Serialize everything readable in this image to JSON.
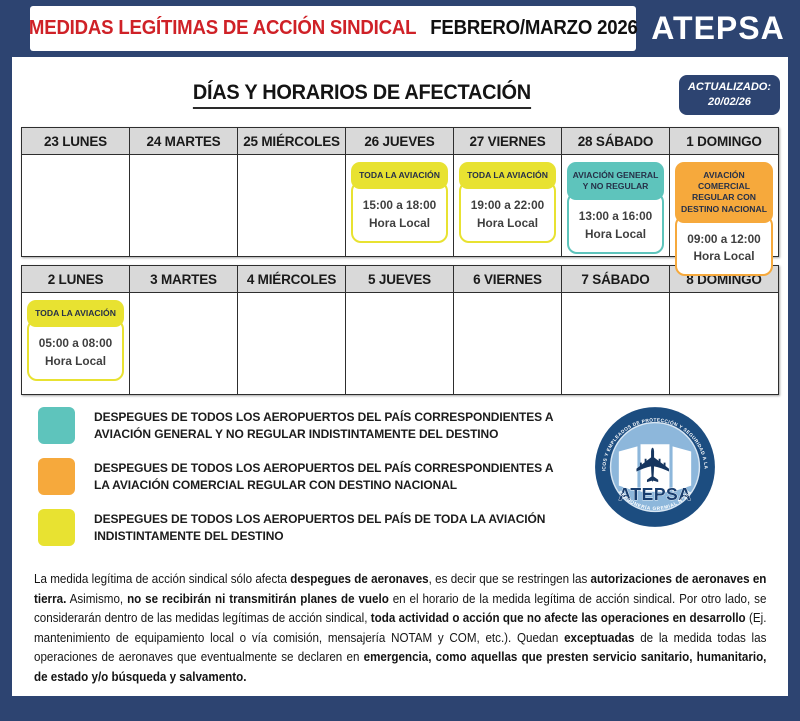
{
  "colors": {
    "navy": "#2d4471",
    "red": "#cf2127",
    "yellow": "#e8e231",
    "teal": "#5ec4bc",
    "orange": "#f6a93c",
    "header_gray": "#d9d9d9"
  },
  "header": {
    "title_red": "MEDIDAS LEGÍTIMAS DE ACCIÓN SINDICAL",
    "title_period": "FEBRERO/MARZO 2026",
    "brand": "ATEPSA"
  },
  "main": {
    "section_title": "DÍAS Y HORARIOS DE AFECTACIÓN",
    "updated_label": "ACTUALIZADO:",
    "updated_date": "20/02/26"
  },
  "calendar": {
    "weeks": [
      {
        "days": [
          {
            "label": "23 LUNES"
          },
          {
            "label": "24 MARTES"
          },
          {
            "label": "25 MIÉRCOLES"
          },
          {
            "label": "26 JUEVES",
            "event": {
              "type": "yellow",
              "badge": "TODA LA AVIACIÓN",
              "time": "15:00 a 18:00",
              "time_label": "Hora Local"
            }
          },
          {
            "label": "27 VIERNES",
            "event": {
              "type": "yellow",
              "badge": "TODA LA AVIACIÓN",
              "time": "19:00 a 22:00",
              "time_label": "Hora Local"
            }
          },
          {
            "label": "28 SÁBADO",
            "event": {
              "type": "teal",
              "badge": "AVIACIÓN GENERAL Y NO REGULAR",
              "time": "13:00 a 16:00",
              "time_label": "Hora Local"
            }
          },
          {
            "label": "1 DOMINGO",
            "event": {
              "type": "orange",
              "badge": "AVIACIÓN COMERCIAL REGULAR CON DESTINO NACIONAL",
              "time": "09:00 a 12:00",
              "time_label": "Hora Local"
            }
          }
        ]
      },
      {
        "days": [
          {
            "label": "2 LUNES",
            "event": {
              "type": "yellow",
              "badge": "TODA LA AVIACIÓN",
              "time": "05:00 a 08:00",
              "time_label": "Hora Local"
            }
          },
          {
            "label": "3 MARTES"
          },
          {
            "label": "4 MIÉRCOLES"
          },
          {
            "label": "5 JUEVES"
          },
          {
            "label": "6 VIERNES"
          },
          {
            "label": "7 SÁBADO"
          },
          {
            "label": "8 DOMINGO"
          }
        ]
      }
    ]
  },
  "legend": [
    {
      "color": "#5ec4bc",
      "lines": [
        "DESPEGUES DE TODOS LOS AEROPUERTOS DEL PAÍS CORRESPONDIENTES A",
        "AVIACIÓN GENERAL Y NO REGULAR INDISTINTAMENTE DEL DESTINO"
      ]
    },
    {
      "color": "#f6a93c",
      "lines": [
        "DESPEGUES DE TODOS LOS AEROPUERTOS DEL PAÍS CORRESPONDIENTES  A",
        "LA AVIACIÓN COMERCIAL REGULAR CON DESTINO NACIONAL"
      ]
    },
    {
      "color": "#e8e231",
      "lines": [
        "DESPEGUES DE TODOS LOS AEROPUERTOS DEL PAÍS DE TODA LA AVIACIÓN",
        "INDISTINTAMENTE DEL DESTINO"
      ]
    }
  ],
  "logo": {
    "brand": "ATEPSA",
    "ring_text_top": "ASOCIACIÓN TÉCNICOS Y EMPLEADOS DE PROTECCIÓN Y SEGURIDAD A LA AERONAVEGACIÓN",
    "ring_text_bottom": "PERSONERÍA GREMIAL N°356"
  },
  "footnote": {
    "segments": [
      {
        "text": "La medida legítima de acción sindical sólo afecta ",
        "bold": false
      },
      {
        "text": "despegues de aeronaves",
        "bold": true
      },
      {
        "text": ", es decir que se restringen las ",
        "bold": false
      },
      {
        "text": "autorizaciones de aeronaves en tierra.",
        "bold": true
      },
      {
        "text": " Asimismo, ",
        "bold": false
      },
      {
        "text": "no se recibirán ni transmitirán planes de vuelo",
        "bold": true
      },
      {
        "text": " en el horario de la medida legítima de acción sindical. Por otro lado, se considerarán dentro de las medidas legítimas de acción sindical, ",
        "bold": false
      },
      {
        "text": "toda actividad o acción que no afecte las operaciones en desarrollo",
        "bold": true
      },
      {
        "text": " (Ej. mantenimiento de equipamiento local o vía comisión, mensajería NOTAM y COM, etc.). Quedan ",
        "bold": false
      },
      {
        "text": "exceptuadas",
        "bold": true
      },
      {
        "text": " de la medida todas las operaciones de aeronaves que eventualmente se declaren en ",
        "bold": false
      },
      {
        "text": "emergencia, como aquellas que presten servicio sanitario, humanitario, de estado y/o búsqueda y salvamento.",
        "bold": true
      }
    ]
  }
}
